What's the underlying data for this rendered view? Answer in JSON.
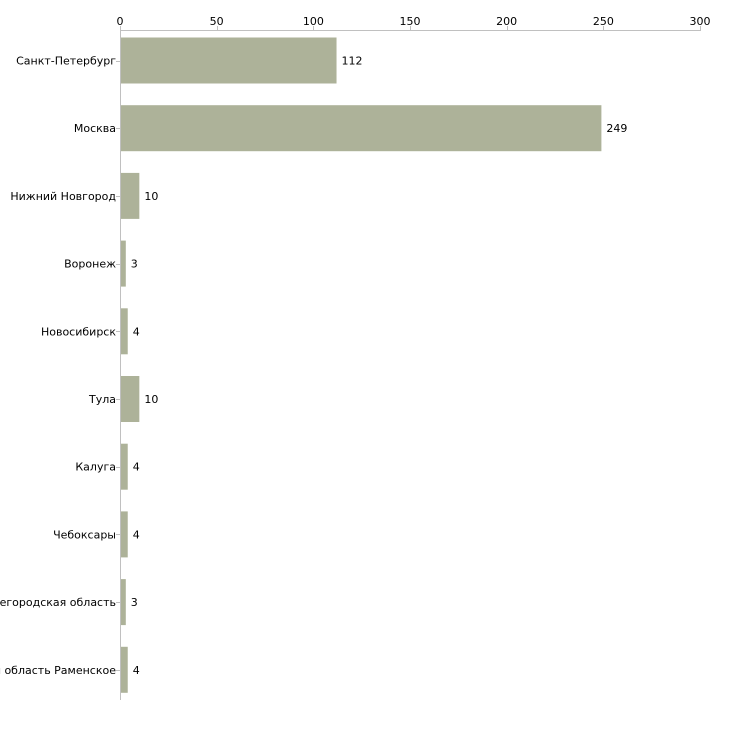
{
  "chart_data": {
    "type": "bar",
    "orientation": "horizontal",
    "title": "",
    "xlabel": "",
    "ylabel": "",
    "xlim": [
      0,
      300
    ],
    "x_ticks": [
      0,
      50,
      100,
      150,
      200,
      250,
      300
    ],
    "x_axis_position": "top",
    "grid": false,
    "categories": [
      "Санкт-Петербург",
      "Москва",
      "Нижний Новгород",
      "Воронеж",
      "Новосибирск",
      "Тула",
      "Калуга",
      "Чебоксары",
      "Нижегородская область",
      "Московская область Раменское"
    ],
    "values": [
      112,
      249,
      10,
      3,
      4,
      10,
      4,
      4,
      3,
      4
    ],
    "colors": {
      "bar": "#adb299",
      "axis": "#c0c0c0",
      "text": "#000000"
    }
  }
}
